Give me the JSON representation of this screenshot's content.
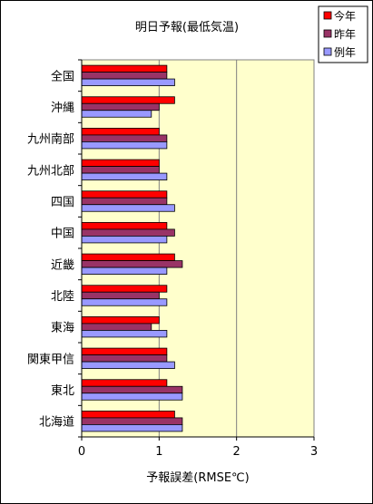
{
  "chart_data": {
    "type": "bar",
    "orientation": "horizontal",
    "title": "明日予報(最低気温)",
    "xlabel": "予報誤差(RMSE℃)",
    "ylabel": "",
    "xlim": [
      0,
      3
    ],
    "xticks": [
      0,
      1,
      2,
      3
    ],
    "grid": "vertical",
    "legend_position": "top-right",
    "categories": [
      "全国",
      "沖縄",
      "九州南部",
      "九州北部",
      "四国",
      "中国",
      "近畿",
      "北陸",
      "東海",
      "関東甲信",
      "東北",
      "北海道"
    ],
    "series": [
      {
        "name": "今年",
        "color": "#ff0000",
        "values": [
          1.1,
          1.2,
          1.0,
          1.0,
          1.1,
          1.1,
          1.2,
          1.1,
          1.0,
          1.1,
          1.1,
          1.2
        ]
      },
      {
        "name": "昨年",
        "color": "#993366",
        "values": [
          1.1,
          1.0,
          1.1,
          1.0,
          1.1,
          1.2,
          1.3,
          1.0,
          0.9,
          1.1,
          1.3,
          1.3
        ]
      },
      {
        "name": "例年",
        "color": "#9999ff",
        "values": [
          1.2,
          0.9,
          1.1,
          1.1,
          1.2,
          1.1,
          1.1,
          1.1,
          1.1,
          1.2,
          1.3,
          1.3
        ]
      }
    ],
    "plot_background": "#ffffcc"
  }
}
